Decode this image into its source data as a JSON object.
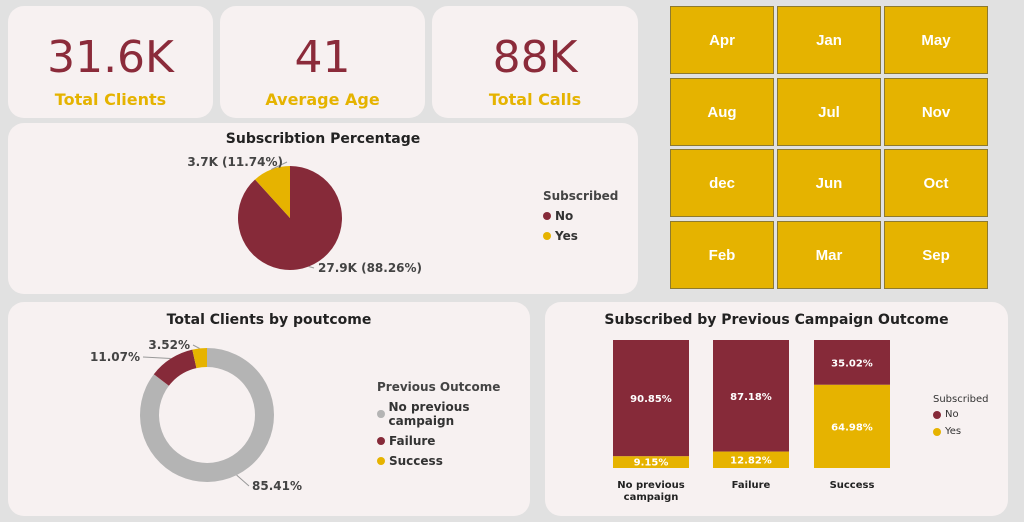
{
  "kpis": [
    {
      "value": "31.6K",
      "label": "Total Clients"
    },
    {
      "value": "41",
      "label": "Average Age"
    },
    {
      "value": "88K",
      "label": "Total Calls"
    }
  ],
  "months": [
    "Apr",
    "Jan",
    "May",
    "Aug",
    "Jul",
    "Nov",
    "dec",
    "Jun",
    "Oct",
    "Feb",
    "Mar",
    "Sep"
  ],
  "colors": {
    "no": "#862a39",
    "yes": "#e6b300",
    "none": "#b4b4b4"
  },
  "chart_data": [
    {
      "type": "pie",
      "title": "Subscribtion Percentage",
      "legend_title": "Subscribed",
      "legend_position": "right",
      "slices": [
        {
          "name": "No",
          "value": 27.9,
          "percent": 88.26,
          "label": "27.9K (88.26%)"
        },
        {
          "name": "Yes",
          "value": 3.7,
          "percent": 11.74,
          "label": "3.7K (11.74%)"
        }
      ]
    },
    {
      "type": "pie",
      "title": "Total Clients by poutcome",
      "legend_title": "Previous Outcome",
      "legend_position": "right",
      "slices": [
        {
          "name": "No previous campaign",
          "percent": 85.41,
          "label": "85.41%"
        },
        {
          "name": "Failure",
          "percent": 11.07,
          "label": "11.07%"
        },
        {
          "name": "Success",
          "percent": 3.52,
          "label": "3.52%"
        }
      ]
    },
    {
      "type": "bar",
      "stacked": "100%",
      "title": "Subscribed by Previous Campaign Outcome",
      "legend_title": "Subscribed",
      "legend_position": "right",
      "categories": [
        "No previous campaign",
        "Failure",
        "Success"
      ],
      "series": [
        {
          "name": "No",
          "values": [
            90.85,
            87.18,
            35.02
          ],
          "labels": [
            "90.85%",
            "87.18%",
            "35.02%"
          ]
        },
        {
          "name": "Yes",
          "values": [
            9.15,
            12.82,
            64.98
          ],
          "labels": [
            "9.15%",
            "12.82%",
            "64.98%"
          ]
        }
      ]
    }
  ]
}
